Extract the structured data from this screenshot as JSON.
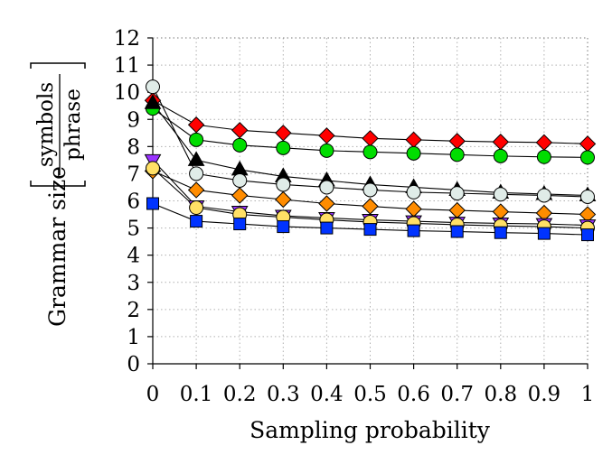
{
  "chart_data": {
    "type": "line",
    "x": [
      0,
      0.1,
      0.2,
      0.3,
      0.4,
      0.5,
      0.6,
      0.7,
      0.8,
      0.9,
      1
    ],
    "x_tick_labels": [
      "0",
      "0.1",
      "0.2",
      "0.3",
      "0.4",
      "0.5",
      "0.6",
      "0.7",
      "0.8",
      "0.9",
      "1"
    ],
    "y_ticks": [
      0,
      1,
      2,
      3,
      4,
      5,
      6,
      7,
      8,
      9,
      10,
      11,
      12
    ],
    "xlim": [
      0,
      1
    ],
    "ylim": [
      0,
      12
    ],
    "xlabel": "Sampling probability",
    "ylabel": "Grammar size",
    "ylabel_fraction": {
      "numerator": "symbols",
      "denominator": "phrase"
    },
    "grid": true,
    "grid_style": "dotted",
    "series": [
      {
        "marker": "diamond",
        "color": "#ff0000",
        "values": [
          9.7,
          8.8,
          8.6,
          8.5,
          8.4,
          8.3,
          8.25,
          8.2,
          8.17,
          8.15,
          8.1
        ]
      },
      {
        "marker": "circle",
        "color": "#00dd00",
        "values": [
          9.4,
          8.25,
          8.05,
          7.95,
          7.85,
          7.8,
          7.75,
          7.7,
          7.65,
          7.62,
          7.6
        ]
      },
      {
        "marker": "triangle-up",
        "color": "#000000",
        "values": [
          9.6,
          7.5,
          7.15,
          6.9,
          6.75,
          6.6,
          6.5,
          6.4,
          6.3,
          6.25,
          6.2
        ]
      },
      {
        "marker": "circle",
        "color": "#e0ece8",
        "values": [
          10.2,
          7.0,
          6.75,
          6.6,
          6.5,
          6.4,
          6.32,
          6.28,
          6.24,
          6.2,
          6.15
        ]
      },
      {
        "marker": "diamond",
        "color": "#ff8c00",
        "values": [
          7.1,
          6.4,
          6.2,
          6.05,
          5.9,
          5.8,
          5.7,
          5.65,
          5.6,
          5.55,
          5.5
        ]
      },
      {
        "marker": "triangle-down",
        "color": "#9933ff",
        "values": [
          7.5,
          5.8,
          5.6,
          5.45,
          5.37,
          5.3,
          5.25,
          5.2,
          5.17,
          5.15,
          5.1
        ]
      },
      {
        "marker": "circle",
        "color": "#ffe066",
        "values": [
          7.2,
          5.75,
          5.5,
          5.4,
          5.3,
          5.22,
          5.17,
          5.12,
          5.08,
          5.05,
          5.0
        ]
      },
      {
        "marker": "square",
        "color": "#0033ff",
        "values": [
          5.9,
          5.25,
          5.15,
          5.05,
          5.0,
          4.95,
          4.9,
          4.87,
          4.83,
          4.8,
          4.75
        ]
      }
    ]
  }
}
